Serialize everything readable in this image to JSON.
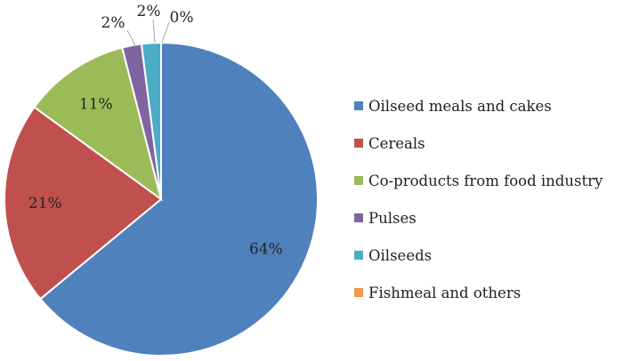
{
  "chart_data": {
    "type": "pie",
    "title": "",
    "categories": [
      "Oilseed meals and cakes",
      "Cereals",
      "Co-products from food industry",
      "Pulses",
      "Oilseeds",
      "Fishmeal and others"
    ],
    "values": [
      64,
      21,
      11,
      2,
      2,
      0
    ],
    "data_labels": [
      "64%",
      "21%",
      "11%",
      "2%",
      "2%",
      "0%"
    ],
    "colors": [
      "#4F81BD",
      "#C0504D",
      "#9BBB59",
      "#8064A2",
      "#4BACC6",
      "#F79646"
    ],
    "legend_position": "right",
    "start_angle": "12 o'clock, clockwise"
  }
}
